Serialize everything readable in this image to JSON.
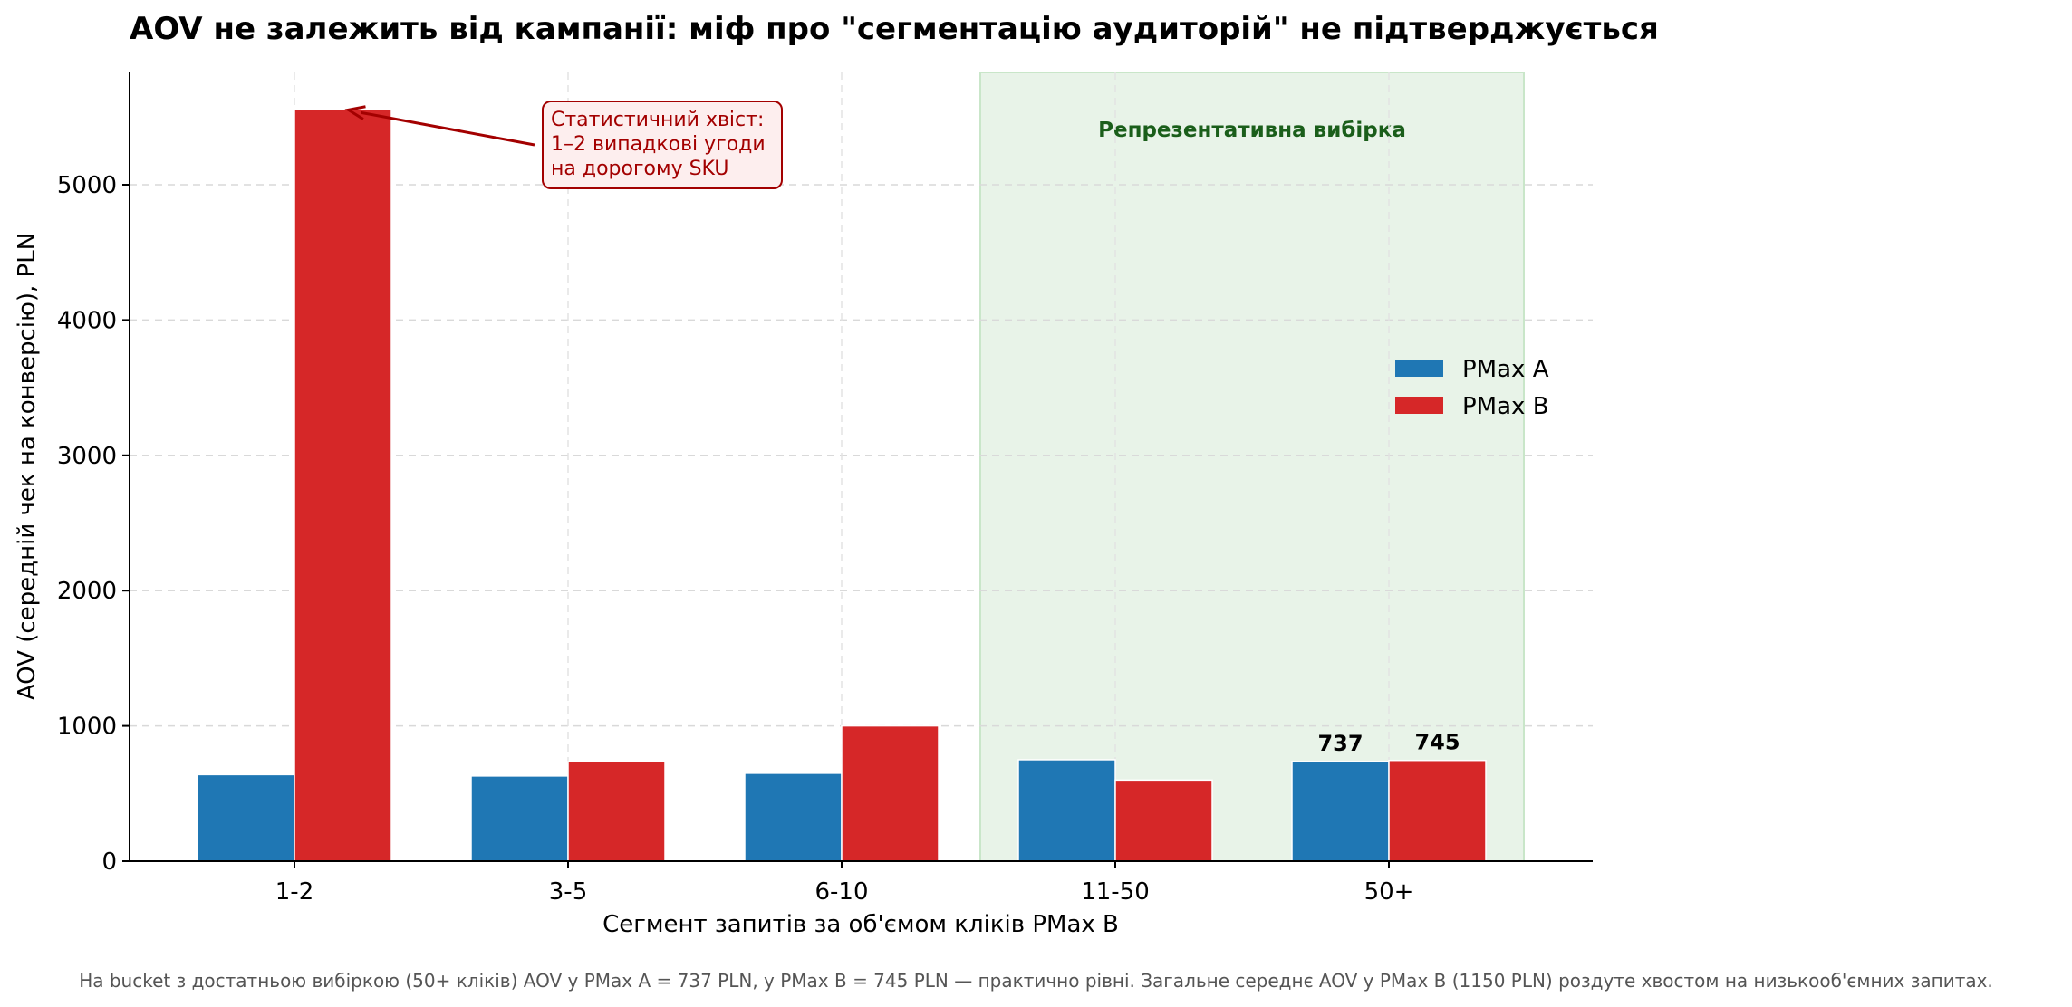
{
  "chart_data": {
    "type": "bar",
    "title": "AOV не залежить від кампанії: міф про \"сегментацію аудиторій\" не підтверджується",
    "xlabel": "Сегмент запитів за об'ємом кліків PMax B",
    "ylabel": "AOV (середній чек на конверсію), PLN",
    "categories": [
      "1-2",
      "3-5",
      "6-10",
      "11-50",
      "50+"
    ],
    "series": [
      {
        "name": "PMax A",
        "color": "#1f77b4",
        "values": [
          640,
          630,
          650,
          750,
          737
        ]
      },
      {
        "name": "PMax B",
        "color": "#d62728",
        "values": [
          5560,
          735,
          1000,
          600,
          745
        ]
      }
    ],
    "ylim": [
      0,
      5830
    ],
    "yticks": [
      0,
      1000,
      2000,
      3000,
      4000,
      5000
    ],
    "grid": true,
    "legend_position": "right",
    "data_labels": [
      {
        "series": 0,
        "category": 4,
        "text": "737"
      },
      {
        "series": 1,
        "category": 4,
        "text": "745"
      }
    ],
    "highlight_region": {
      "categories": [
        "11-50",
        "50+"
      ],
      "label": "Репрезентативна вибірка",
      "color": "#e8f3e8",
      "label_color": "#1a5e1a"
    },
    "annotation": {
      "text": "Статистичний хвіст:\n1–2 випадкові угоди\nна дорогому SKU",
      "points_to": {
        "series": 1,
        "category": 0
      },
      "color": "#a30000"
    }
  },
  "footnote": "На bucket з достатньою вибіркою (50+ кліків) AOV у PMax A = 737 PLN, у PMax B = 745 PLN — практично рівні.  Загальне середнє AOV у PMax B (1150 PLN) роздуте хвостом на низькооб'ємних запитах."
}
